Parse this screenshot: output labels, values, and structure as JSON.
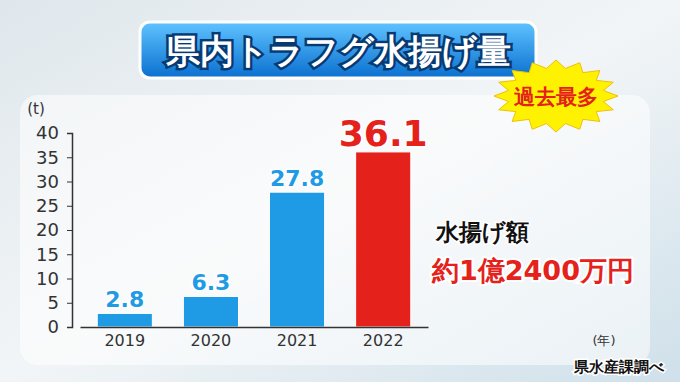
{
  "chart_data": {
    "type": "bar",
    "title": "県内トラフグ水揚げ量",
    "categories": [
      "2019",
      "2020",
      "2021",
      "2022"
    ],
    "values": [
      2.8,
      6.3,
      27.8,
      36.1
    ],
    "colors": [
      "#1f9be6",
      "#1f9be6",
      "#1f9be6",
      "#e4211b"
    ],
    "ylim": [
      0,
      40
    ],
    "yticks": [
      0,
      5,
      10,
      15,
      20,
      25,
      30,
      35,
      40
    ],
    "y_label": "(t)",
    "x_label": "(年)",
    "data_labels": true,
    "grid": false,
    "annotations": [
      "過去最多",
      "水揚げ額",
      "約1億2400万円"
    ],
    "source": "県水産課調べ"
  }
}
